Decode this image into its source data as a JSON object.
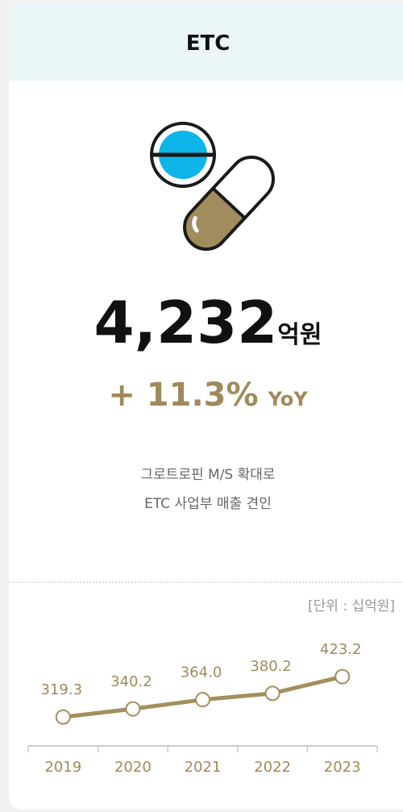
{
  "header": {
    "title": "ETC"
  },
  "kpi": {
    "value": "4,232",
    "unit": "억원",
    "change": "+ 11.3%",
    "change_suffix": "YoY"
  },
  "description": [
    "그로트로핀 M/S 확대로",
    "ETC 사업부 매출 견인"
  ],
  "chart_data": {
    "type": "line",
    "unit_label": "[단위 : 십억원]",
    "categories": [
      "2019",
      "2020",
      "2021",
      "2022",
      "2023"
    ],
    "values": [
      319.3,
      340.2,
      364.0,
      380.2,
      423.2
    ],
    "value_labels": [
      "319.3",
      "340.2",
      "364.0",
      "380.2",
      "423.2"
    ],
    "color": "#a38f5e",
    "ylim": [
      270,
      550
    ]
  }
}
